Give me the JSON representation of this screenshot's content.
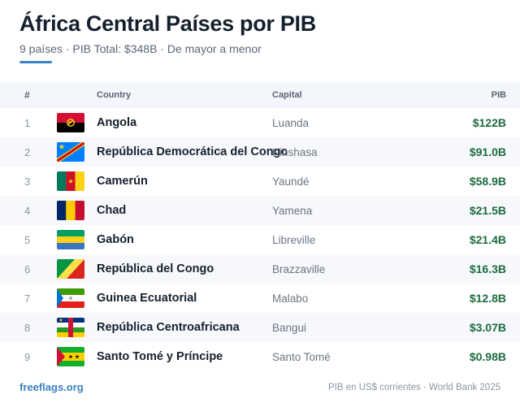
{
  "header": {
    "title": "África Central Países por PIB",
    "subtitle": "9 países · PIB Total: $348B · De mayor a menor",
    "accent_color": "#3b82c4"
  },
  "table": {
    "columns": {
      "num": "#",
      "country": "Country",
      "capital": "Capital",
      "gdp": "PIB"
    },
    "rows": [
      {
        "num": "1",
        "flag": "angola-flag",
        "country": "Angola",
        "capital": "Luanda",
        "gdp": "$122B"
      },
      {
        "num": "2",
        "flag": "dr-congo-flag",
        "country": "República Democrática del Congo",
        "capital": "Kinshasa",
        "gdp": "$91.0B"
      },
      {
        "num": "3",
        "flag": "cameroon-flag",
        "country": "Camerún",
        "capital": "Yaundé",
        "gdp": "$58.9B"
      },
      {
        "num": "4",
        "flag": "chad-flag",
        "country": "Chad",
        "capital": "Yamena",
        "gdp": "$21.5B"
      },
      {
        "num": "5",
        "flag": "gabon-flag",
        "country": "Gabón",
        "capital": "Libreville",
        "gdp": "$21.4B"
      },
      {
        "num": "6",
        "flag": "congo-flag",
        "country": "República del Congo",
        "capital": "Brazzaville",
        "gdp": "$16.3B"
      },
      {
        "num": "7",
        "flag": "equatorial-guinea-flag",
        "country": "Guinea Ecuatorial",
        "capital": "Malabo",
        "gdp": "$12.8B"
      },
      {
        "num": "8",
        "flag": "central-african-republic-flag",
        "country": "República Centroafricana",
        "capital": "Bangui",
        "gdp": "$3.07B"
      },
      {
        "num": "9",
        "flag": "sao-tome-flag",
        "country": "Santo Tomé y Príncipe",
        "capital": "Santo Tomé",
        "gdp": "$0.98B"
      }
    ]
  },
  "footer": {
    "site": "freeflags.org",
    "source": "PIB en US$ corrientes · World Bank 2025"
  },
  "colors": {
    "gdp": "#1d6b3f",
    "link": "#3b82c4"
  }
}
